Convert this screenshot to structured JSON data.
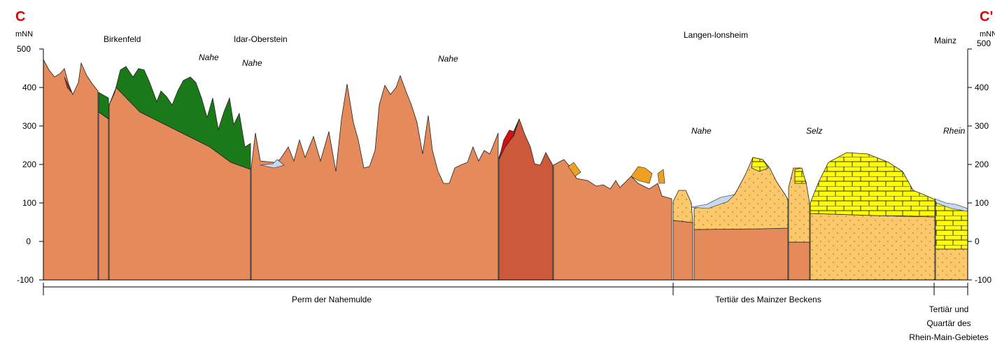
{
  "section": {
    "start_label": "C",
    "end_label": "C'",
    "marker_color": "#e00000"
  },
  "axis": {
    "unit_left": "mNN",
    "unit_right": "mNN",
    "ticks": [
      "500",
      "400",
      "300",
      "200",
      "100",
      "0",
      "-100"
    ],
    "range_m": [
      -100,
      500
    ]
  },
  "places": {
    "birkenfeld": "Birkenfeld",
    "idar_oberstein": "Idar-Oberstein",
    "langenlonsheim": "Langen-lonsheim",
    "mainz": "Mainz"
  },
  "rivers": {
    "nahe_1": "Nahe",
    "nahe_2": "Nahe",
    "nahe_3": "Nahe",
    "nahe_4": "Nahe",
    "selz": "Selz",
    "rhein": "Rhein"
  },
  "units": {
    "perm": "Perm der Nahemulde",
    "tertiaer": "Tertiär des Mainzer Beckens",
    "rhein_main_line1": "Tertiär und",
    "rhein_main_line2": "Quartär des",
    "rhein_main_line3": "Rhein-Main-Gebietes"
  },
  "colors": {
    "permian": "#e58a5a",
    "permian_dark": "#cc5a3a",
    "volcanic_green": "#1a7a1a",
    "tertiary_sand": "#fcc96a",
    "limestone_yellow": "#ffff00",
    "quaternary_blue": "#c6d9f0",
    "intrusion_red": "#d81010",
    "orange_patch": "#f0a020"
  }
}
